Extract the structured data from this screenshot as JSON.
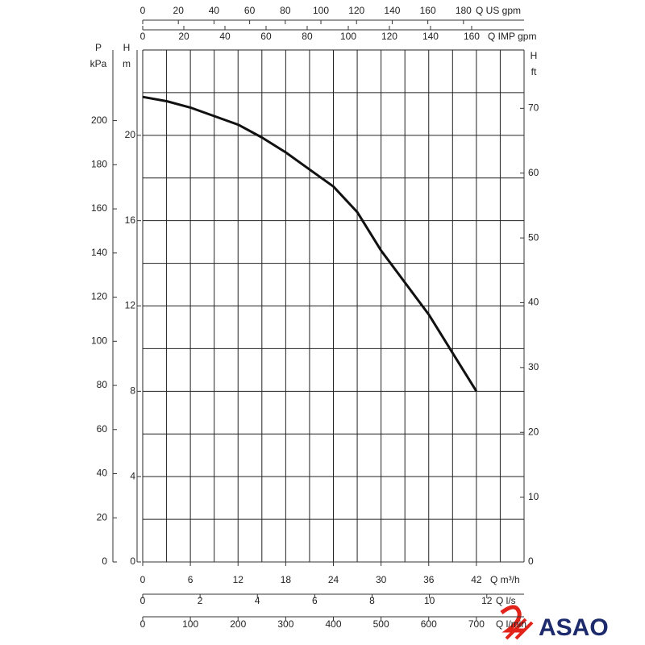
{
  "chart_data": {
    "type": "line",
    "x_label": "Q m³/h",
    "xlim": [
      0,
      48
    ],
    "xticks": [
      0,
      6,
      12,
      18,
      24,
      30,
      36,
      42
    ],
    "y_label": [
      "H",
      "m"
    ],
    "ylim": [
      0,
      24
    ],
    "yticks": [
      0,
      4,
      8,
      12,
      16,
      20
    ],
    "xgrid": [
      0,
      3,
      6,
      9,
      12,
      15,
      18,
      21,
      24,
      27,
      30,
      33,
      36,
      39,
      42,
      45,
      48
    ],
    "ygrid": [
      0,
      2,
      4,
      6,
      8,
      10,
      12,
      14,
      16,
      18,
      20,
      22,
      24
    ],
    "x": [
      0,
      3,
      6,
      9,
      12,
      15,
      18,
      21,
      24,
      27,
      30,
      33,
      36,
      39,
      42
    ],
    "series": [
      {
        "color": "#111111",
        "values": [
          21.8,
          21.6,
          21.3,
          20.9,
          20.5,
          19.9,
          19.2,
          18.4,
          17.6,
          16.4,
          14.6,
          13.1,
          11.6,
          9.8,
          8.0
        ]
      }
    ],
    "y2_label": [
      "H",
      "ft"
    ],
    "y2lim": [
      0,
      79
    ],
    "y2ticks": [
      0,
      10,
      20,
      30,
      40,
      50,
      60,
      70
    ],
    "p_axis": {
      "label": [
        "P",
        "kPa"
      ],
      "lim": [
        0,
        232
      ],
      "ticks": [
        0,
        20,
        40,
        60,
        80,
        100,
        120,
        140,
        160,
        180,
        200
      ]
    },
    "us_gpm_axis": {
      "label": "Q US gpm",
      "lim": [
        0,
        214
      ],
      "ticks": [
        0,
        20,
        40,
        60,
        80,
        100,
        120,
        140,
        160,
        180
      ]
    },
    "imp_gpm_axis": {
      "label": "Q IMP gpm",
      "lim": [
        0,
        185.5
      ],
      "ticks": [
        0,
        20,
        40,
        60,
        80,
        100,
        120,
        140,
        160
      ]
    },
    "ls_axis": {
      "label": "Q l/s",
      "lim": [
        0,
        13.3
      ],
      "ticks": [
        0,
        2,
        4,
        6,
        8,
        10,
        12
      ]
    },
    "lmin_axis": {
      "label": "Q l/min",
      "lim": [
        0,
        800
      ],
      "ticks": [
        0,
        100,
        200,
        300,
        400,
        500,
        600,
        700
      ]
    }
  },
  "logo": "ASAO"
}
